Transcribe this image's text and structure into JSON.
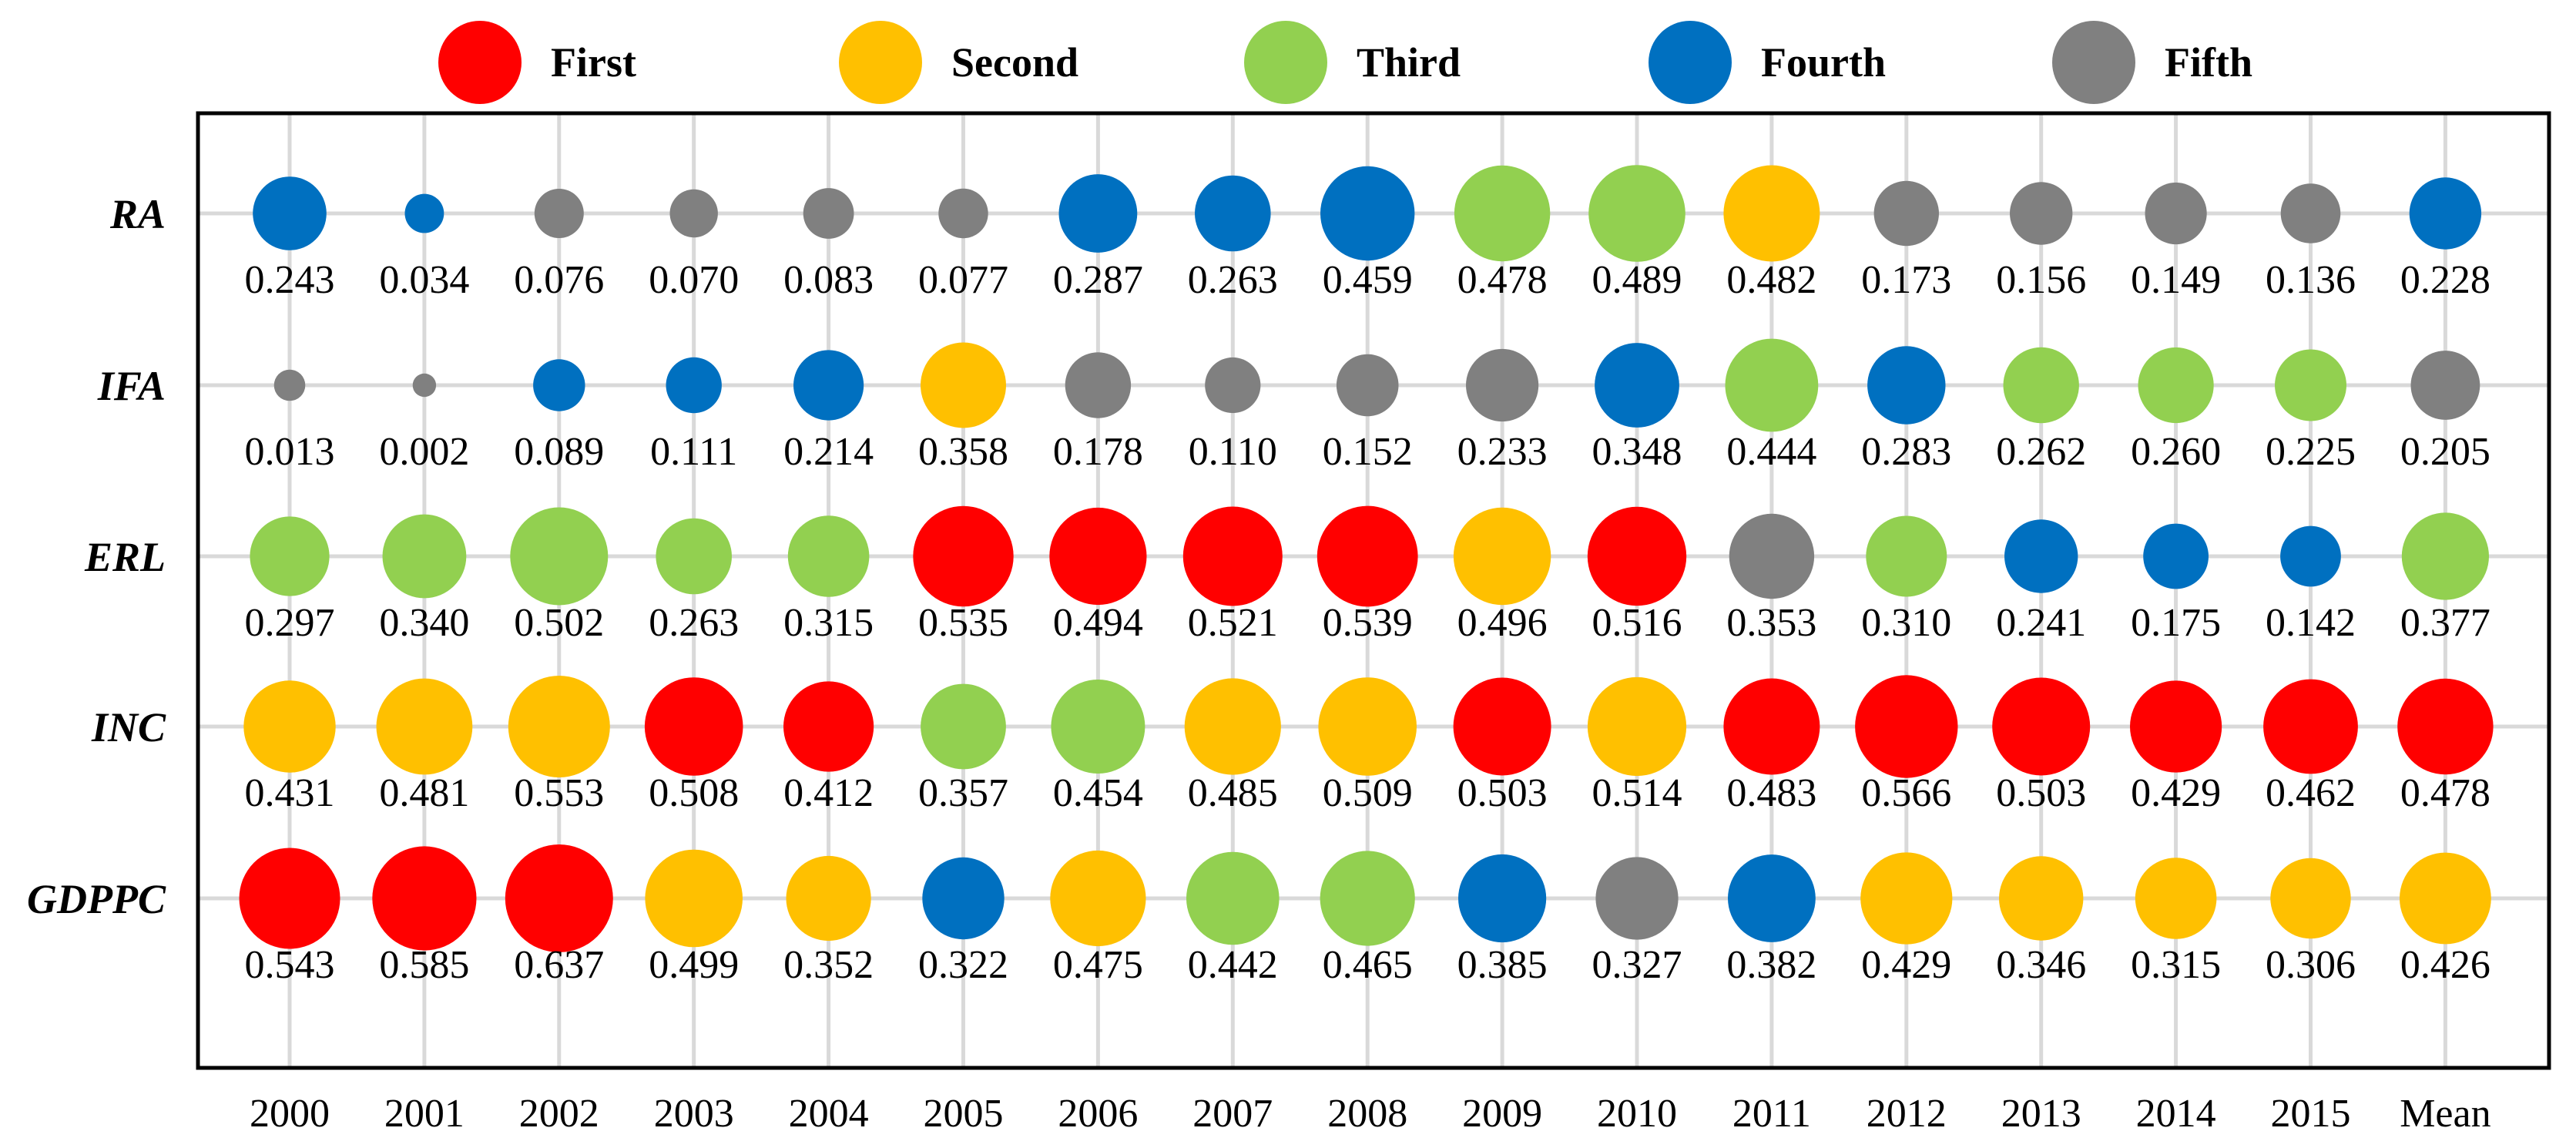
{
  "chart_data": {
    "type": "bubble-matrix",
    "title": "",
    "xlabel": "",
    "ylabel": "",
    "legend_position": "top",
    "legend": [
      {
        "key": "First",
        "label": "First",
        "color": "#ff0000"
      },
      {
        "key": "Second",
        "label": "Second",
        "color": "#ffc000"
      },
      {
        "key": "Third",
        "label": "Third",
        "color": "#92d050"
      },
      {
        "key": "Fourth",
        "label": "Fourth",
        "color": "#0070c0"
      },
      {
        "key": "Fifth",
        "label": "Fifth",
        "color": "#808080"
      }
    ],
    "categories": [
      "2000",
      "2001",
      "2002",
      "2003",
      "2004",
      "2005",
      "2006",
      "2007",
      "2008",
      "2009",
      "2010",
      "2011",
      "2012",
      "2013",
      "2014",
      "2015",
      "Mean"
    ],
    "series": [
      {
        "name": "RA",
        "values": [
          0.243,
          0.034,
          0.076,
          0.07,
          0.083,
          0.077,
          0.287,
          0.263,
          0.459,
          0.478,
          0.489,
          0.482,
          0.173,
          0.156,
          0.149,
          0.136,
          0.228
        ],
        "labels": [
          "0.243",
          "0.034",
          "0.076",
          "0.070",
          "0.083",
          "0.077",
          "0.287",
          "0.263",
          "0.459",
          "0.478",
          "0.489",
          "0.482",
          "0.173",
          "0.156",
          "0.149",
          "0.136",
          "0.228"
        ],
        "ranks": [
          "Fourth",
          "Fourth",
          "Fifth",
          "Fifth",
          "Fifth",
          "Fifth",
          "Fourth",
          "Fourth",
          "Fourth",
          "Third",
          "Third",
          "Second",
          "Fifth",
          "Fifth",
          "Fifth",
          "Fifth",
          "Fourth"
        ]
      },
      {
        "name": "IFA",
        "values": [
          0.013,
          0.002,
          0.089,
          0.111,
          0.214,
          0.358,
          0.178,
          0.11,
          0.152,
          0.233,
          0.348,
          0.444,
          0.283,
          0.262,
          0.26,
          0.225,
          0.205
        ],
        "labels": [
          "0.013",
          "0.002",
          "0.089",
          "0.111",
          "0.214",
          "0.358",
          "0.178",
          "0.110",
          "0.152",
          "0.233",
          "0.348",
          "0.444",
          "0.283",
          "0.262",
          "0.260",
          "0.225",
          "0.205"
        ],
        "ranks": [
          "Fifth",
          "Fifth",
          "Fourth",
          "Fourth",
          "Fourth",
          "Second",
          "Fifth",
          "Fifth",
          "Fifth",
          "Fifth",
          "Fourth",
          "Third",
          "Fourth",
          "Third",
          "Third",
          "Third",
          "Fifth"
        ]
      },
      {
        "name": "ERL",
        "values": [
          0.297,
          0.34,
          0.502,
          0.263,
          0.315,
          0.535,
          0.494,
          0.521,
          0.539,
          0.496,
          0.516,
          0.353,
          0.31,
          0.241,
          0.175,
          0.142,
          0.377
        ],
        "labels": [
          "0.297",
          "0.340",
          "0.502",
          "0.263",
          "0.315",
          "0.535",
          "0.494",
          "0.521",
          "0.539",
          "0.496",
          "0.516",
          "0.353",
          "0.310",
          "0.241",
          "0.175",
          "0.142",
          "0.377"
        ],
        "ranks": [
          "Third",
          "Third",
          "Third",
          "Third",
          "Third",
          "First",
          "First",
          "First",
          "First",
          "Second",
          "First",
          "Fifth",
          "Third",
          "Fourth",
          "Fourth",
          "Fourth",
          "Third"
        ]
      },
      {
        "name": "INC",
        "values": [
          0.431,
          0.481,
          0.553,
          0.508,
          0.412,
          0.357,
          0.454,
          0.485,
          0.509,
          0.503,
          0.514,
          0.483,
          0.566,
          0.503,
          0.429,
          0.462,
          0.478
        ],
        "labels": [
          "0.431",
          "0.481",
          "0.553",
          "0.508",
          "0.412",
          "0.357",
          "0.454",
          "0.485",
          "0.509",
          "0.503",
          "0.514",
          "0.483",
          "0.566",
          "0.503",
          "0.429",
          "0.462",
          "0.478"
        ],
        "ranks": [
          "Second",
          "Second",
          "Second",
          "First",
          "First",
          "Third",
          "Third",
          "Second",
          "Second",
          "First",
          "Second",
          "First",
          "First",
          "First",
          "First",
          "First",
          "First"
        ]
      },
      {
        "name": "GDPPC",
        "values": [
          0.543,
          0.585,
          0.637,
          0.499,
          0.352,
          0.322,
          0.475,
          0.442,
          0.465,
          0.385,
          0.327,
          0.382,
          0.429,
          0.346,
          0.315,
          0.306,
          0.426
        ],
        "labels": [
          "0.543",
          "0.585",
          "0.637",
          "0.499",
          "0.352",
          "0.322",
          "0.475",
          "0.442",
          "0.465",
          "0.385",
          "0.327",
          "0.382",
          "0.429",
          "0.346",
          "0.315",
          "0.306",
          "0.426"
        ],
        "ranks": [
          "First",
          "First",
          "First",
          "Second",
          "Second",
          "Fourth",
          "Second",
          "Third",
          "Third",
          "Fourth",
          "Fifth",
          "Fourth",
          "Second",
          "Second",
          "Second",
          "Second",
          "Second"
        ]
      }
    ]
  }
}
